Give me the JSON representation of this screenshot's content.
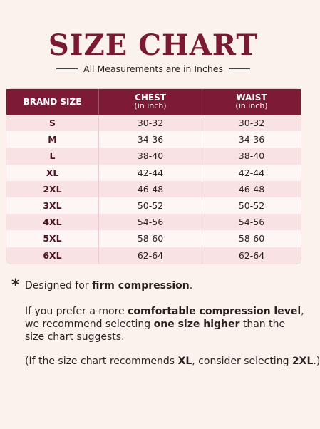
{
  "header": {
    "title": "SIZE CHART",
    "subtitle": "All Measurements are in Inches"
  },
  "table": {
    "columns": [
      {
        "label": "BRAND SIZE"
      },
      {
        "label": "CHEST",
        "unit": "(in inch)"
      },
      {
        "label": "WAIST",
        "unit": "(in inch)"
      }
    ],
    "rows": [
      [
        "S",
        "30-32",
        "30-32"
      ],
      [
        "M",
        "34-36",
        "34-36"
      ],
      [
        "L",
        "38-40",
        "38-40"
      ],
      [
        "XL",
        "42-44",
        "42-44"
      ],
      [
        "2XL",
        "46-48",
        "46-48"
      ],
      [
        "3XL",
        "50-52",
        "50-52"
      ],
      [
        "4XL",
        "54-56",
        "54-56"
      ],
      [
        "5XL",
        "58-60",
        "58-60"
      ],
      [
        "6XL",
        "62-64",
        "62-64"
      ]
    ]
  },
  "notes": {
    "marker": "*",
    "paragraphs": [
      {
        "lines": [
          [
            {
              "text": "Designed for ",
              "bold": false
            },
            {
              "text": "firm compression",
              "bold": true
            },
            {
              "text": ".",
              "bold": false
            }
          ]
        ]
      },
      {
        "lines": [
          [
            {
              "text": "If you prefer a more ",
              "bold": false
            },
            {
              "text": "comfortable compression level",
              "bold": true
            },
            {
              "text": ",",
              "bold": false
            }
          ],
          [
            {
              "text": "we recommend selecting ",
              "bold": false
            },
            {
              "text": "one size higher",
              "bold": true
            },
            {
              "text": " than the",
              "bold": false
            }
          ],
          [
            {
              "text": "size chart suggests.",
              "bold": false
            }
          ]
        ]
      },
      {
        "lines": [
          [
            {
              "text": "(If the size chart recommends ",
              "bold": false
            },
            {
              "text": "XL",
              "bold": true
            },
            {
              "text": ", consider selecting ",
              "bold": false
            },
            {
              "text": "2XL",
              "bold": true
            },
            {
              "text": ".)",
              "bold": false
            }
          ]
        ]
      }
    ]
  }
}
